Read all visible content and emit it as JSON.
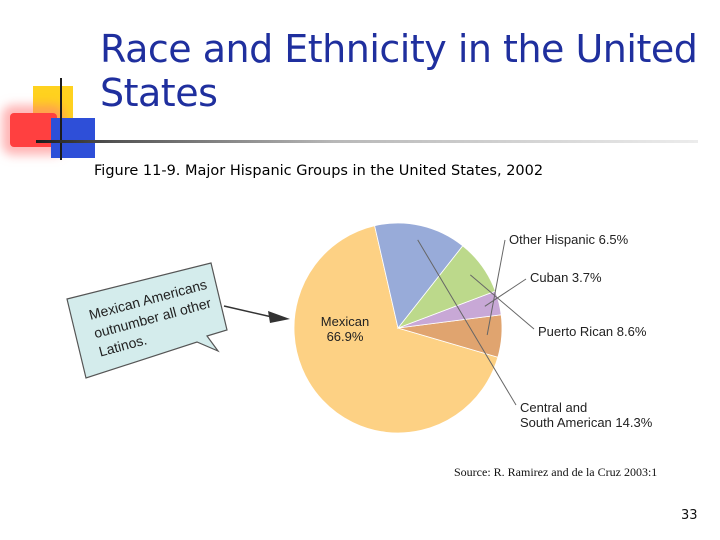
{
  "slide": {
    "title": "Race and Ethnicity in the United States",
    "caption": "Figure 11-9. Major Hispanic Groups in the United States, 2002",
    "source": "Source: R. Ramirez and de la Cruz 2003:1",
    "page_number": "33"
  },
  "callout": {
    "lines": [
      "Mexican Americans",
      "outnumber all other",
      "Latinos."
    ]
  },
  "chart_data": {
    "type": "pie",
    "title": "Figure 11-9. Major Hispanic Groups in the United States, 2002",
    "slices": [
      {
        "label": "Mexican",
        "value": 66.9,
        "display": [
          "Mexican",
          "66.9%"
        ],
        "color": "#fdd184"
      },
      {
        "label": "Other Hispanic",
        "value": 6.5,
        "display": [
          "Other Hispanic 6.5%"
        ],
        "color": "#e0a46f"
      },
      {
        "label": "Cuban",
        "value": 3.7,
        "display": [
          "Cuban 3.7%"
        ],
        "color": "#c8a8d6"
      },
      {
        "label": "Puerto Rican",
        "value": 8.6,
        "display": [
          "Puerto Rican 8.6%"
        ],
        "color": "#bcd98b"
      },
      {
        "label": "Central and South American",
        "value": 14.3,
        "display": [
          "Central and",
          "South American 14.3%"
        ],
        "color": "#98abd9"
      }
    ]
  }
}
